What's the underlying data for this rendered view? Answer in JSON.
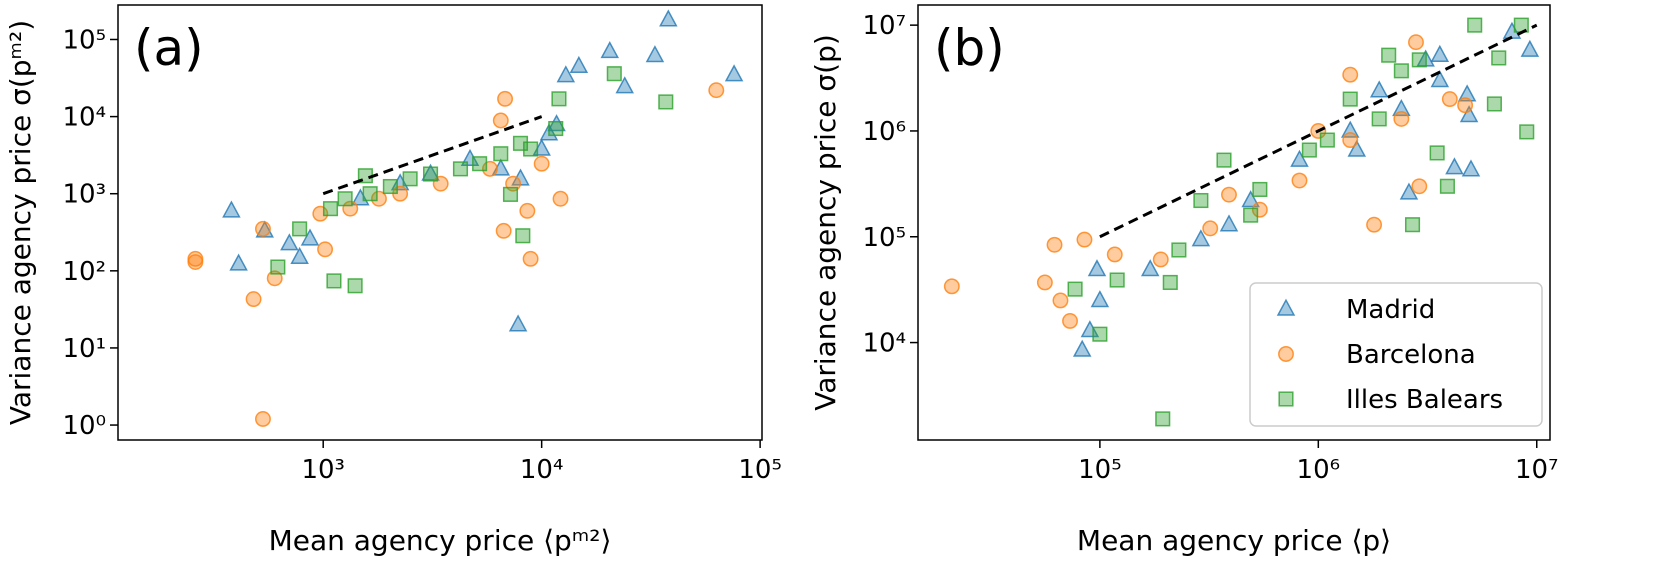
{
  "chart_data": [
    {
      "type": "scatter",
      "panel_label": "(a)",
      "x_label": "Mean agency price ⟨pᵐ²⟩",
      "y_label": "Variance agency price σ(pᵐ²)",
      "log_x": true,
      "log_y": true,
      "xlim": [
        115,
        102000
      ],
      "ylim": [
        0.64,
        280000
      ],
      "xticks": [
        {
          "value": 1000,
          "label": "10³"
        },
        {
          "value": 10000,
          "label": "10⁴"
        },
        {
          "value": 100000,
          "label": "10⁵"
        }
      ],
      "yticks": [
        {
          "value": 1,
          "label": "10⁰"
        },
        {
          "value": 10,
          "label": "10¹"
        },
        {
          "value": 100,
          "label": "10²"
        },
        {
          "value": 1000,
          "label": "10³"
        },
        {
          "value": 10000,
          "label": "10⁴"
        },
        {
          "value": 100000,
          "label": "10⁵"
        }
      ],
      "dashed_line": {
        "x": [
          1000,
          10000
        ],
        "y": [
          1000,
          10000
        ]
      },
      "series": [
        {
          "color": "#1f77b4",
          "marker": "triangle",
          "x": [
            38000,
            33000,
            20500,
            24000,
            14800,
            12900,
            76000,
            7800,
            11700,
            380,
            410,
            540,
            700,
            780,
            870,
            8000,
            6500,
            4700,
            3100,
            2250,
            1480,
            10000,
            10800
          ],
          "y": [
            180000,
            62000,
            70000,
            24500,
            45000,
            34000,
            35000,
            20,
            7900,
            600,
            123,
            330,
            225,
            150,
            260,
            1560,
            2100,
            2800,
            1800,
            1350,
            860,
            3800,
            6000
          ]
        },
        {
          "color": "#ff7f0e",
          "marker": "circle",
          "x": [
            260,
            260,
            480,
            530,
            530,
            600,
            1020,
            6800,
            6500,
            63000,
            8900,
            6700,
            8600,
            12200,
            7400,
            5800,
            3450,
            2250,
            1800,
            1330,
            970,
            10000
          ],
          "y": [
            143,
            130,
            43,
            1.2,
            350,
            80,
            190,
            17000,
            8900,
            22000,
            143,
            330,
            600,
            860,
            1350,
            2100,
            1350,
            1000,
            860,
            640,
            550,
            2450
          ]
        },
        {
          "color": "#2ca02c",
          "marker": "square",
          "x": [
            21500,
            37000,
            12000,
            1120,
            1400,
            8200,
            620,
            7200,
            11600,
            8900,
            6500,
            5200,
            4250,
            3100,
            2500,
            2030,
            1640,
            1260,
            1080,
            780,
            1560,
            8000
          ],
          "y": [
            36000,
            15500,
            17000,
            74,
            64,
            285,
            112,
            980,
            7000,
            3800,
            3300,
            2450,
            2100,
            1800,
            1560,
            1240,
            1000,
            860,
            640,
            350,
            1710,
            4500
          ]
        }
      ]
    },
    {
      "type": "scatter",
      "panel_label": "(b)",
      "x_label": "Mean agency price ⟨p⟩",
      "y_label": "Variance agency price σ(p)",
      "log_x": true,
      "log_y": true,
      "xlim": [
        14700,
        11500000
      ],
      "ylim": [
        1200,
        15500000
      ],
      "xticks": [
        {
          "value": 100000,
          "label": "10⁵"
        },
        {
          "value": 1000000,
          "label": "10⁶"
        },
        {
          "value": 10000000,
          "label": "10⁷"
        }
      ],
      "yticks": [
        {
          "value": 10000,
          "label": "10⁴"
        },
        {
          "value": 100000,
          "label": "10⁵"
        },
        {
          "value": 1000000,
          "label": "10⁶"
        },
        {
          "value": 10000000,
          "label": "10⁷"
        }
      ],
      "dashed_line": {
        "x": [
          100000,
          10000000
        ],
        "y": [
          100000,
          10000000
        ]
      },
      "legend": "lower right",
      "series": [
        {
          "name": "Madrid",
          "color": "#1f77b4",
          "marker": "triangle",
          "x": [
            97000,
            83000,
            90000,
            100000,
            170000,
            290000,
            490000,
            820000,
            1400000,
            2400000,
            3600000,
            4900000,
            5000000,
            4200000,
            2600000,
            1500000,
            1900000,
            3100000,
            3600000,
            4800000,
            9300000,
            7700000,
            390000
          ],
          "y": [
            49000,
            8500,
            13000,
            25000,
            49000,
            94000,
            220000,
            530000,
            1000000,
            1600000,
            3000000,
            1400000,
            430000,
            450000,
            260000,
            660000,
            2400000,
            4700000,
            5200000,
            2200000,
            5800000,
            8600000,
            130000
          ]
        },
        {
          "name": "Barcelona",
          "color": "#ff7f0e",
          "marker": "circle",
          "x": [
            21000,
            56000,
            62000,
            66000,
            73000,
            85000,
            117000,
            190000,
            320000,
            540000,
            820000,
            1400000,
            2400000,
            1400000,
            1800000,
            2900000,
            4700000,
            4000000,
            2800000,
            1000000,
            390000
          ],
          "y": [
            34000,
            37000,
            84000,
            25000,
            16000,
            94000,
            68000,
            61000,
            120000,
            180000,
            340000,
            820000,
            1300000,
            3400000,
            130000,
            300000,
            1750000,
            2000000,
            6900000,
            1000000,
            250000
          ]
        },
        {
          "name": "Illes Balears",
          "color": "#2ca02c",
          "marker": "square",
          "x": [
            194000,
            77000,
            100000,
            120000,
            210000,
            230000,
            370000,
            540000,
            910000,
            1100000,
            1900000,
            1400000,
            2400000,
            2900000,
            3500000,
            3900000,
            2700000,
            2100000,
            6400000,
            9000000,
            6700000,
            8500000,
            5200000,
            490000,
            290000
          ],
          "y": [
            1900,
            32000,
            12000,
            39000,
            37000,
            75000,
            530000,
            280000,
            660000,
            820000,
            1300000,
            2000000,
            3700000,
            4700000,
            620000,
            300000,
            130000,
            5200000,
            1800000,
            980000,
            4900000,
            10000000,
            10000000,
            160000,
            220000
          ]
        }
      ]
    }
  ]
}
